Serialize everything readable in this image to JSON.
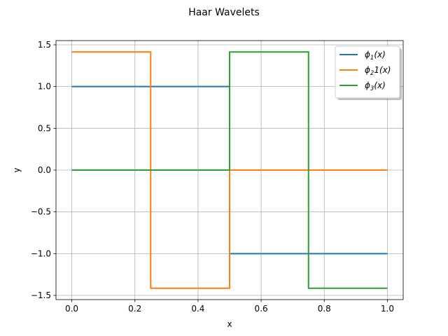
{
  "chart_data": {
    "type": "line",
    "title": "Haar Wavelets",
    "xlabel": "x",
    "ylabel": "y",
    "xlim": [
      -0.05,
      1.05
    ],
    "ylim": [
      -1.55,
      1.55
    ],
    "xticks": [
      0.0,
      0.2,
      0.4,
      0.6,
      0.8,
      1.0
    ],
    "xtick_labels": [
      "0.0",
      "0.2",
      "0.4",
      "0.6",
      "0.8",
      "1.0"
    ],
    "yticks": [
      1.5,
      1.0,
      0.5,
      0.0,
      -0.5,
      -1.0,
      -1.5
    ],
    "ytick_labels": [
      "1.5",
      "1.0",
      "0.5",
      "0.0",
      "−0.5",
      "−1.0",
      "−1.5"
    ],
    "grid": true,
    "legend_position": "top-right",
    "series": [
      {
        "name": "ϕ₁(x)",
        "legend_main": "ϕ",
        "legend_sub": "1",
        "legend_rest": "(x)",
        "color": "#1f77b4",
        "x": [
          0.0,
          0.5,
          0.5,
          1.0
        ],
        "y": [
          1.0,
          1.0,
          -1.0,
          -1.0
        ]
      },
      {
        "name": "ϕ₂1(x)",
        "legend_main": "ϕ",
        "legend_sub": "2",
        "legend_rest": "1(x)",
        "color": "#ff7f0e",
        "x": [
          0.0,
          0.25,
          0.25,
          0.5,
          0.5,
          1.0
        ],
        "y": [
          1.414,
          1.414,
          -1.414,
          -1.414,
          0.0,
          0.0
        ]
      },
      {
        "name": "ϕ₃(x)",
        "legend_main": "ϕ",
        "legend_sub": "3",
        "legend_rest": "(x)",
        "color": "#2ca02c",
        "x": [
          0.0,
          0.5,
          0.5,
          0.75,
          0.75,
          1.0
        ],
        "y": [
          0.0,
          0.0,
          1.414,
          1.414,
          -1.414,
          -1.414
        ]
      }
    ]
  }
}
